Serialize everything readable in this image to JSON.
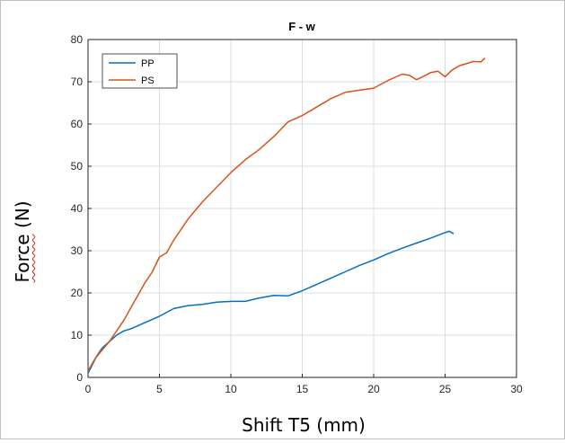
{
  "chart_data": {
    "type": "line",
    "title": "F - w",
    "xlabel": "Shift T5 (mm)",
    "ylabel": "Force (N)",
    "ylabel_word": "Force",
    "ylabel_unit": "(N)",
    "xlim": [
      0,
      30
    ],
    "ylim": [
      0,
      80
    ],
    "xticks": [
      0,
      5,
      10,
      15,
      20,
      25,
      30
    ],
    "yticks": [
      0,
      10,
      20,
      30,
      40,
      50,
      60,
      70,
      80
    ],
    "grid": true,
    "legend_position": "top-left",
    "series": [
      {
        "name": "PP",
        "color": "#0072bd",
        "x": [
          0,
          0.3,
          0.6,
          1,
          1.5,
          2,
          2.5,
          3,
          4,
          5,
          6,
          7,
          8,
          9,
          10,
          11,
          12,
          13,
          14,
          15,
          16,
          17,
          18,
          19,
          20,
          21,
          22,
          23,
          24,
          25,
          25.3,
          25.6
        ],
        "y": [
          1,
          3,
          5,
          7,
          8.5,
          10,
          11,
          11.5,
          13,
          14.5,
          16.3,
          17,
          17.3,
          17.8,
          18,
          18,
          18.8,
          19.4,
          19.3,
          20.5,
          22,
          23.5,
          25,
          26.5,
          27.8,
          29.3,
          30.6,
          31.8,
          33,
          34.3,
          34.6,
          34
        ]
      },
      {
        "name": "PS",
        "color": "#d95319",
        "x": [
          0,
          0.5,
          1,
          1.5,
          2,
          2.5,
          3,
          3.5,
          4,
          4.5,
          5,
          5.5,
          6,
          7,
          8,
          9,
          10,
          11,
          12,
          13,
          14,
          15,
          16,
          17,
          18,
          19,
          20,
          21,
          22,
          22.5,
          23,
          23.5,
          24,
          24.5,
          25,
          25.5,
          26,
          27,
          27.5,
          27.8
        ],
        "y": [
          1.5,
          4.5,
          6.5,
          8.5,
          11,
          13.5,
          16.5,
          19.5,
          22.5,
          25,
          28.5,
          29.5,
          32.5,
          37.5,
          41.5,
          45,
          48.5,
          51.5,
          54,
          57,
          60.5,
          62,
          64,
          66,
          67.5,
          68,
          68.5,
          70.3,
          71.8,
          71.5,
          70.5,
          71.3,
          72.2,
          72.5,
          71.2,
          72.8,
          73.8,
          74.8,
          74.7,
          75.6
        ]
      }
    ]
  }
}
